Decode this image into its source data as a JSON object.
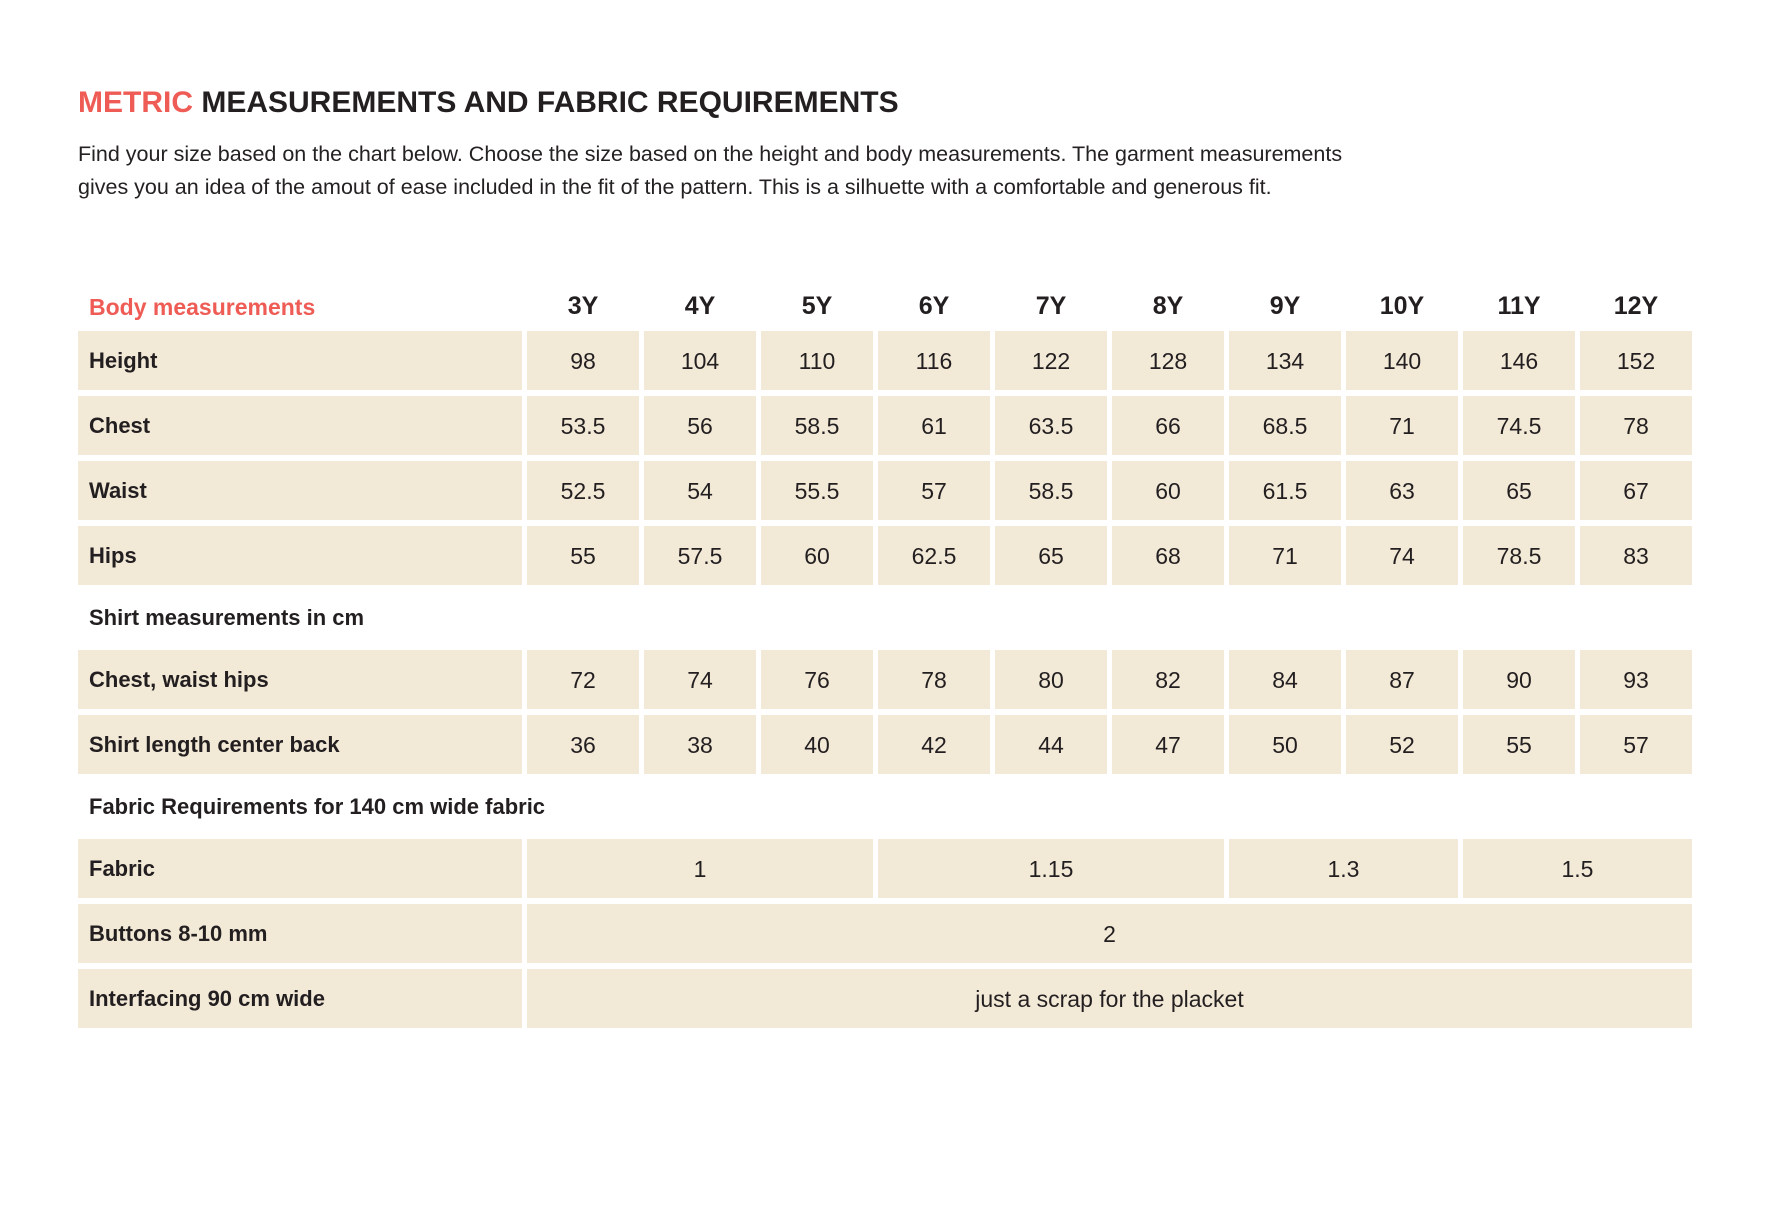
{
  "page": {
    "title_highlight": "METRIC",
    "title_rest": " MEASUREMENTS AND FABRIC REQUIREMENTS",
    "description_line1": "Find your size based on the chart below. Choose the size based on the height and body measurements. The garment measurements",
    "description_line2": "gives you an idea of the amout of ease included in the fit of the pattern. This is a silhuette with a comfortable and generous fit."
  },
  "colors": {
    "accent": "#ee5c55",
    "cell_background": "#f2e9d7",
    "text": "#231f20"
  },
  "chart_data": {
    "type": "table",
    "header": {
      "label": "Body measurements",
      "sizes": [
        "3Y",
        "4Y",
        "5Y",
        "6Y",
        "7Y",
        "8Y",
        "9Y",
        "10Y",
        "11Y",
        "12Y"
      ]
    },
    "body_rows": [
      {
        "label": "Height",
        "values": [
          "98",
          "104",
          "110",
          "116",
          "122",
          "128",
          "134",
          "140",
          "146",
          "152"
        ]
      },
      {
        "label": "Chest",
        "values": [
          "53.5",
          "56",
          "58.5",
          "61",
          "63.5",
          "66",
          "68.5",
          "71",
          "74.5",
          "78"
        ]
      },
      {
        "label": "Waist",
        "values": [
          "52.5",
          "54",
          "55.5",
          "57",
          "58.5",
          "60",
          "61.5",
          "63",
          "65",
          "67"
        ]
      },
      {
        "label": "Hips",
        "values": [
          "55",
          "57.5",
          "60",
          "62.5",
          "65",
          "68",
          "71",
          "74",
          "78.5",
          "83"
        ]
      }
    ],
    "shirt_section": {
      "title": "Shirt measurements in cm",
      "rows": [
        {
          "label": "Chest, waist hips",
          "values": [
            "72",
            "74",
            "76",
            "78",
            "80",
            "82",
            "84",
            "87",
            "90",
            "93"
          ]
        },
        {
          "label": "Shirt length center back",
          "values": [
            "36",
            "38",
            "40",
            "42",
            "44",
            "47",
            "50",
            "52",
            "55",
            "57"
          ]
        }
      ]
    },
    "fabric_section": {
      "title": "Fabric Requirements for 140 cm wide fabric",
      "rows": [
        {
          "label": "Fabric",
          "cells": [
            {
              "value": "1",
              "span": 3
            },
            {
              "value": "1.15",
              "span": 3
            },
            {
              "value": "1.3",
              "span": 2
            },
            {
              "value": "1.5",
              "span": 2
            }
          ]
        },
        {
          "label": "Buttons 8-10 mm",
          "cells": [
            {
              "value": "2",
              "span": 10
            }
          ]
        },
        {
          "label": "Interfacing 90 cm wide",
          "cells": [
            {
              "value": "just a scrap for the placket",
              "span": 10
            }
          ]
        }
      ]
    }
  }
}
